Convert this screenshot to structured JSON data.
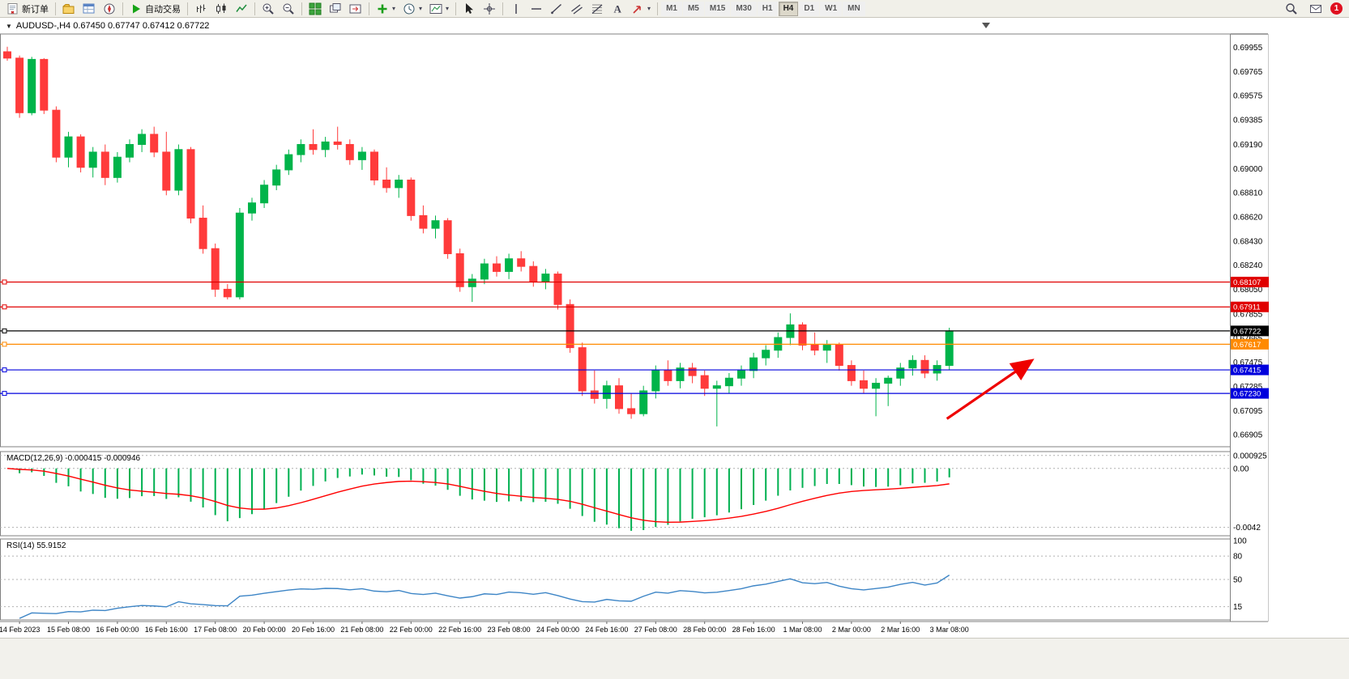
{
  "toolbar": {
    "groups": [
      [
        {
          "name": "new-order-button",
          "icon": "new-order",
          "label": "新订单"
        }
      ],
      [
        {
          "name": "profiles-button",
          "icon": "profiles"
        },
        {
          "name": "market-watch-button",
          "icon": "market-watch"
        },
        {
          "name": "navigator-button",
          "icon": "navigator"
        }
      ],
      [
        {
          "name": "autotrade-button",
          "icon": "play",
          "label": "自动交易"
        }
      ],
      [
        {
          "name": "bar-chart-button",
          "icon": "bars"
        },
        {
          "name": "candlestick-chart-button",
          "icon": "candles"
        },
        {
          "name": "line-chart-button",
          "icon": "linechart"
        }
      ],
      [
        {
          "name": "zoom-in-button",
          "icon": "zoom-in"
        },
        {
          "name": "zoom-out-button",
          "icon": "zoom-out"
        }
      ],
      [
        {
          "name": "tile-windows-button",
          "icon": "tile"
        },
        {
          "name": "auto-arrange-button",
          "icon": "arrange"
        },
        {
          "name": "chart-shift-button",
          "icon": "shift"
        }
      ],
      [
        {
          "name": "indicators-button",
          "icon": "indicator-add",
          "caret": true
        },
        {
          "name": "periods-button",
          "icon": "clock",
          "caret": true
        },
        {
          "name": "templates-button",
          "icon": "template",
          "caret": true
        }
      ],
      [
        {
          "name": "cursor-button",
          "icon": "cursor"
        },
        {
          "name": "crosshair-button",
          "icon": "crosshair"
        }
      ],
      [
        {
          "name": "vertical-line-button",
          "icon": "vline"
        },
        {
          "name": "horizontal-line-button",
          "icon": "hline"
        },
        {
          "name": "trendline-button",
          "icon": "trendline"
        },
        {
          "name": "channel-button",
          "icon": "channel"
        },
        {
          "name": "fibonacci-button",
          "icon": "fibo"
        },
        {
          "name": "text-tool-button",
          "icon": "text"
        },
        {
          "name": "arrows-tool-button",
          "icon": "arrows",
          "caret": true
        }
      ]
    ],
    "timeframes": [
      "M1",
      "M5",
      "M15",
      "M30",
      "H1",
      "H4",
      "D1",
      "W1",
      "MN"
    ],
    "active_timeframe": "H4",
    "right_icons": [
      {
        "name": "search-button",
        "icon": "search"
      },
      {
        "name": "mail-button",
        "icon": "mail"
      }
    ],
    "badge_count": "1"
  },
  "chart": {
    "title": "AUDUSD-,H4 0.67450 0.67747 0.67412 0.67722",
    "symbol": "AUDUSD-",
    "timeframe": "H4"
  },
  "chart_data": {
    "type": "candlestick",
    "symbol": "AUDUSD-",
    "timeframe": "H4",
    "current_ohlc": {
      "open": 0.6745,
      "high": 0.67747,
      "low": 0.67412,
      "close": 0.67722
    },
    "price_range": {
      "max": 0.7006,
      "min": 0.6681
    },
    "price_axis_labels": [
      "0.69955",
      "0.69765",
      "0.69575",
      "0.69385",
      "0.69190",
      "0.69000",
      "0.68810",
      "0.68620",
      "0.68430",
      "0.68240",
      "0.68050",
      "0.67855",
      "0.67665",
      "0.67475",
      "0.67285",
      "0.67095",
      "0.66905"
    ],
    "time_labels": [
      "14 Feb 2023",
      "15 Feb 08:00",
      "16 Feb 00:00",
      "16 Feb 16:00",
      "17 Feb 08:00",
      "20 Feb 00:00",
      "20 Feb 16:00",
      "21 Feb 08:00",
      "22 Feb 00:00",
      "22 Feb 16:00",
      "23 Feb 08:00",
      "24 Feb 00:00",
      "24 Feb 16:00",
      "27 Feb 08:00",
      "28 Feb 00:00",
      "28 Feb 16:00",
      "1 Mar 08:00",
      "2 Mar 00:00",
      "2 Mar 16:00",
      "3 Mar 08:00"
    ],
    "time_label_first_index": 1,
    "time_label_step": 4,
    "shift_marker_bar": 80,
    "candles": [
      [
        0.6992,
        0.6996,
        0.6985,
        0.6987
      ],
      [
        0.6987,
        0.6989,
        0.694,
        0.6944
      ],
      [
        0.6944,
        0.6988,
        0.6942,
        0.6986
      ],
      [
        0.6986,
        0.6987,
        0.6943,
        0.6946
      ],
      [
        0.6946,
        0.6949,
        0.6905,
        0.6909
      ],
      [
        0.6909,
        0.6929,
        0.6901,
        0.6925
      ],
      [
        0.6925,
        0.6927,
        0.6897,
        0.6901
      ],
      [
        0.6901,
        0.6917,
        0.6893,
        0.6913
      ],
      [
        0.6913,
        0.6919,
        0.6887,
        0.6893
      ],
      [
        0.6893,
        0.6913,
        0.6889,
        0.6909
      ],
      [
        0.6909,
        0.6923,
        0.6905,
        0.6919
      ],
      [
        0.6919,
        0.6931,
        0.6913,
        0.6927
      ],
      [
        0.6927,
        0.6933,
        0.6909,
        0.6913
      ],
      [
        0.6913,
        0.6929,
        0.6879,
        0.6883
      ],
      [
        0.6883,
        0.6919,
        0.6879,
        0.6915
      ],
      [
        0.6915,
        0.6917,
        0.6857,
        0.6861
      ],
      [
        0.6861,
        0.6871,
        0.6833,
        0.6837
      ],
      [
        0.6837,
        0.6841,
        0.6799,
        0.6805
      ],
      [
        0.6805,
        0.6809,
        0.6797,
        0.6799
      ],
      [
        0.6799,
        0.6869,
        0.6797,
        0.6865
      ],
      [
        0.6865,
        0.6877,
        0.6859,
        0.6873
      ],
      [
        0.6873,
        0.6891,
        0.6869,
        0.6887
      ],
      [
        0.6887,
        0.6903,
        0.6883,
        0.6899
      ],
      [
        0.6899,
        0.6915,
        0.6895,
        0.6911
      ],
      [
        0.6911,
        0.6923,
        0.6905,
        0.6919
      ],
      [
        0.6919,
        0.6931,
        0.6911,
        0.6915
      ],
      [
        0.6915,
        0.6925,
        0.6909,
        0.6921
      ],
      [
        0.6921,
        0.6933,
        0.6915,
        0.6919
      ],
      [
        0.6919,
        0.6923,
        0.6903,
        0.6907
      ],
      [
        0.6907,
        0.6917,
        0.6899,
        0.6913
      ],
      [
        0.6913,
        0.6915,
        0.6887,
        0.6891
      ],
      [
        0.6891,
        0.6901,
        0.6881,
        0.6885
      ],
      [
        0.6885,
        0.6895,
        0.6877,
        0.6891
      ],
      [
        0.6891,
        0.6893,
        0.6859,
        0.6863
      ],
      [
        0.6863,
        0.6871,
        0.6849,
        0.6853
      ],
      [
        0.6853,
        0.6863,
        0.6845,
        0.6859
      ],
      [
        0.6859,
        0.6861,
        0.6829,
        0.6833
      ],
      [
        0.6833,
        0.6837,
        0.6803,
        0.6807
      ],
      [
        0.6807,
        0.6817,
        0.6795,
        0.6813
      ],
      [
        0.6813,
        0.6829,
        0.6809,
        0.6825
      ],
      [
        0.6825,
        0.6831,
        0.6815,
        0.6819
      ],
      [
        0.6819,
        0.6833,
        0.6813,
        0.6829
      ],
      [
        0.6829,
        0.6835,
        0.6819,
        0.6823
      ],
      [
        0.6823,
        0.6827,
        0.6807,
        0.6811
      ],
      [
        0.6811,
        0.6821,
        0.6805,
        0.6817
      ],
      [
        0.6817,
        0.6819,
        0.6789,
        0.6793
      ],
      [
        0.6793,
        0.6797,
        0.6755,
        0.6759
      ],
      [
        0.6759,
        0.6763,
        0.6721,
        0.6725
      ],
      [
        0.6725,
        0.6741,
        0.6715,
        0.6719
      ],
      [
        0.6719,
        0.6733,
        0.6711,
        0.6729
      ],
      [
        0.6729,
        0.6735,
        0.6707,
        0.6711
      ],
      [
        0.6711,
        0.6723,
        0.6703,
        0.6707
      ],
      [
        0.6707,
        0.6729,
        0.6705,
        0.6725
      ],
      [
        0.6725,
        0.6745,
        0.6719,
        0.6741
      ],
      [
        0.6741,
        0.6749,
        0.6729,
        0.6733
      ],
      [
        0.6733,
        0.6747,
        0.6727,
        0.6743
      ],
      [
        0.6743,
        0.6747,
        0.6731,
        0.6737
      ],
      [
        0.6737,
        0.6741,
        0.6721,
        0.6727
      ],
      [
        0.6727,
        0.6733,
        0.6697,
        0.6729
      ],
      [
        0.6729,
        0.6739,
        0.6723,
        0.6735
      ],
      [
        0.6735,
        0.6745,
        0.6729,
        0.6741
      ],
      [
        0.6741,
        0.6755,
        0.6735,
        0.6751
      ],
      [
        0.6751,
        0.6761,
        0.6745,
        0.6757
      ],
      [
        0.6757,
        0.6771,
        0.6751,
        0.6767
      ],
      [
        0.6767,
        0.6786,
        0.6761,
        0.6777
      ],
      [
        0.6777,
        0.6779,
        0.6757,
        0.6761
      ],
      [
        0.6761,
        0.6771,
        0.6753,
        0.6757
      ],
      [
        0.6757,
        0.6765,
        0.6747,
        0.6761
      ],
      [
        0.6761,
        0.6763,
        0.6741,
        0.6745
      ],
      [
        0.6745,
        0.6749,
        0.6729,
        0.6733
      ],
      [
        0.6733,
        0.6741,
        0.6723,
        0.6727
      ],
      [
        0.6727,
        0.6735,
        0.6705,
        0.6731
      ],
      [
        0.6731,
        0.6737,
        0.6713,
        0.6735
      ],
      [
        0.6735,
        0.6747,
        0.6729,
        0.6743
      ],
      [
        0.6743,
        0.6753,
        0.6737,
        0.6749
      ],
      [
        0.6749,
        0.6753,
        0.6735,
        0.6739
      ],
      [
        0.6739,
        0.6749,
        0.6733,
        0.6745
      ],
      [
        0.6745,
        0.67747,
        0.67412,
        0.67722
      ]
    ],
    "hlines": [
      {
        "value": 0.68107,
        "label": "0.68107",
        "color": "#E00000"
      },
      {
        "value": 0.67911,
        "label": "0.67911",
        "color": "#E00000"
      },
      {
        "value": 0.67722,
        "label": "0.67722",
        "color": "#000000"
      },
      {
        "value": 0.67617,
        "label": "0.67617",
        "color": "#FF8A00"
      },
      {
        "value": 0.67415,
        "label": "0.67415",
        "color": "#0000DD"
      },
      {
        "value": 0.6723,
        "label": "0.67230",
        "color": "#0000DD"
      }
    ],
    "arrow": {
      "from_bar": 76.8,
      "from_price": 0.6703,
      "to_bar": 83.6,
      "to_price": 0.6748,
      "color": "#EE0000"
    },
    "macd": {
      "label": "MACD(12,26,9) -0.000415 -0.000946",
      "fast": 12,
      "slow": 26,
      "signal_period": 9,
      "current_macd": -0.000415,
      "current_signal": -0.000946,
      "axis_labels": [
        "0.000925",
        "0.00",
        "-0.0042"
      ],
      "range": {
        "max": 0.0012,
        "min": -0.0048
      }
    },
    "rsi": {
      "label": "RSI(14) 55.9152",
      "period": 14,
      "current": 55.9152,
      "levels": [
        80,
        50,
        15
      ],
      "axis_labels": [
        "100",
        "80",
        "50",
        "15"
      ],
      "range": {
        "max": 100,
        "min": 0
      }
    },
    "colors": {
      "up": "#00B44A",
      "down": "#FF3B3B",
      "macd_hist": "#00B050",
      "macd_signal": "#FF0000",
      "rsi_line": "#3D85C6",
      "grid": "#B0B0B0",
      "axis_text": "#000000",
      "pane_border": "#808080"
    }
  }
}
